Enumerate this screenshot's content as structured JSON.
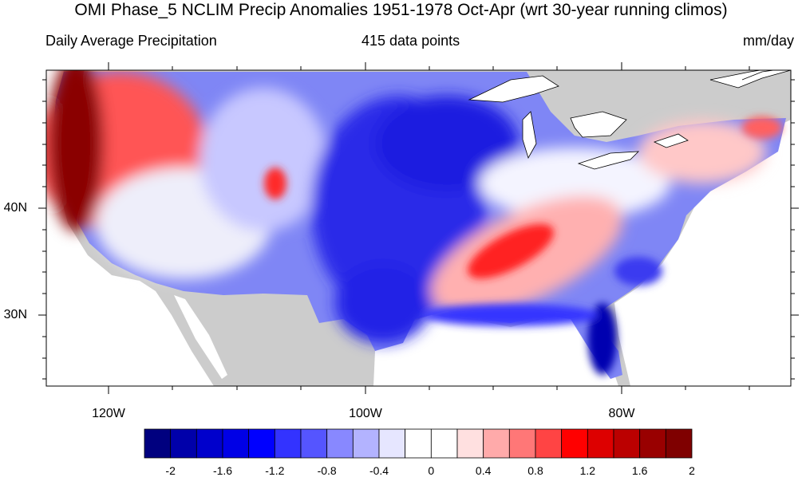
{
  "title": "OMI Phase_5 NCLIM Precip Anomalies 1951-1978 Oct-Apr (wrt 30-year running climos)",
  "subtitle_left": "Daily Average Precipitation",
  "subtitle_center": "415 data points",
  "subtitle_right": "mm/day",
  "map": {
    "region": "Contiguous United States",
    "lat_labels": [
      "40N",
      "30N"
    ],
    "lon_labels": [
      "120W",
      "100W",
      "80W"
    ],
    "land_mask_color": "#cccccc",
    "ocean_color": "#ffffff",
    "regions": [
      {
        "area": "Pacific Northwest / California coast",
        "anomaly": "strong positive",
        "approx_mm_day": 2.2
      },
      {
        "area": "Northern Rockies",
        "anomaly": "positive",
        "approx_mm_day": 1.0
      },
      {
        "area": "Great Basin / Southwest",
        "anomaly": "near zero to slightly negative",
        "approx_mm_day": -0.2
      },
      {
        "area": "Great Plains / Texas / Midwest",
        "anomaly": "negative",
        "approx_mm_day": -1.4
      },
      {
        "area": "Tennessee Valley / Southeast interior",
        "anomaly": "positive",
        "approx_mm_day": 1.2
      },
      {
        "area": "Florida / Gulf Coast",
        "anomaly": "strong negative",
        "approx_mm_day": -2.0
      },
      {
        "area": "New England",
        "anomaly": "positive",
        "approx_mm_day": 0.8
      }
    ]
  },
  "colorbar": {
    "colors": [
      "#00007f",
      "#0000aa",
      "#0000cc",
      "#0000e6",
      "#0000ff",
      "#3333ff",
      "#5555ff",
      "#8888ff",
      "#b3b3ff",
      "#e6e6ff",
      "#ffffff",
      "#ffffff",
      "#ffe0e0",
      "#ffaaaa",
      "#ff7777",
      "#ff4444",
      "#ff0000",
      "#dd0000",
      "#bb0000",
      "#990000",
      "#7f0000"
    ],
    "labels": [
      "-2",
      "-1.6",
      "-1.2",
      "-0.8",
      "-0.4",
      "0",
      "0.4",
      "0.8",
      "1.2",
      "1.6",
      "2"
    ],
    "min": -2.2,
    "max": 2.2,
    "step": 0.2
  }
}
